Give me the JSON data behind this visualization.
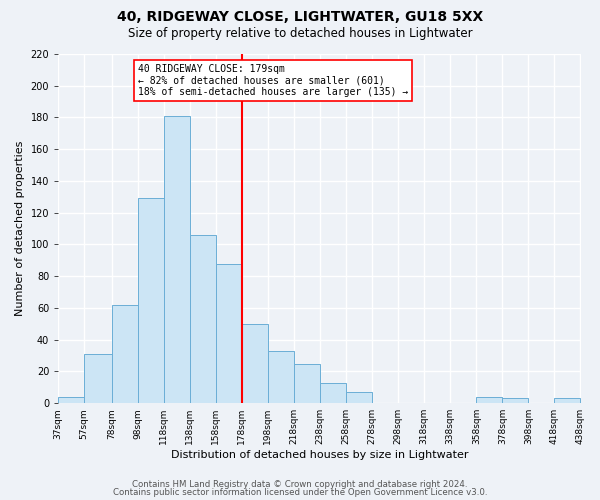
{
  "title": "40, RIDGEWAY CLOSE, LIGHTWATER, GU18 5XX",
  "subtitle": "Size of property relative to detached houses in Lightwater",
  "xlabel": "Distribution of detached houses by size in Lightwater",
  "ylabel": "Number of detached properties",
  "bar_edges": [
    37,
    57,
    78,
    98,
    118,
    138,
    158,
    178,
    198,
    218,
    238,
    258,
    278,
    298,
    318,
    338,
    358,
    378,
    398,
    418,
    438
  ],
  "bar_heights": [
    4,
    31,
    62,
    129,
    181,
    106,
    88,
    50,
    33,
    25,
    13,
    7,
    0,
    0,
    0,
    0,
    4,
    3,
    0,
    3
  ],
  "bar_facecolor": "#cce5f5",
  "bar_edgecolor": "#6baed6",
  "reference_line_x": 178,
  "reference_line_color": "red",
  "annotation_line1": "40 RIDGEWAY CLOSE: 179sqm",
  "annotation_line2": "← 82% of detached houses are smaller (601)",
  "annotation_line3": "18% of semi-detached houses are larger (135) →",
  "annotation_box_edgecolor": "red",
  "annotation_box_facecolor": "white",
  "ylim": [
    0,
    220
  ],
  "yticks": [
    0,
    20,
    40,
    60,
    80,
    100,
    120,
    140,
    160,
    180,
    200,
    220
  ],
  "tick_labels": [
    "37sqm",
    "57sqm",
    "78sqm",
    "98sqm",
    "118sqm",
    "138sqm",
    "158sqm",
    "178sqm",
    "198sqm",
    "218sqm",
    "238sqm",
    "258sqm",
    "278sqm",
    "298sqm",
    "318sqm",
    "338sqm",
    "358sqm",
    "378sqm",
    "398sqm",
    "418sqm",
    "438sqm"
  ],
  "footer_line1": "Contains HM Land Registry data © Crown copyright and database right 2024.",
  "footer_line2": "Contains public sector information licensed under the Open Government Licence v3.0.",
  "background_color": "#eef2f7",
  "grid_color": "#ffffff",
  "title_fontsize": 10,
  "subtitle_fontsize": 8.5,
  "xlabel_fontsize": 8,
  "ylabel_fontsize": 8,
  "footer_fontsize": 6.2,
  "tick_fontsize": 6.5,
  "ytick_fontsize": 7
}
